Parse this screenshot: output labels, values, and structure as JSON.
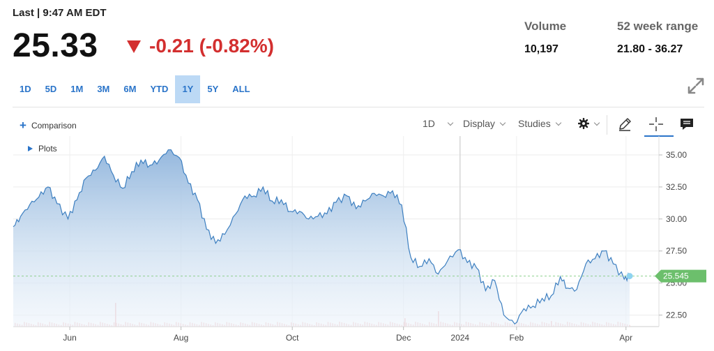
{
  "header": {
    "last_label": "Last | 9:47 AM EDT",
    "price": "25.33",
    "change": "-0.21 (-0.82%)",
    "volume_label": "Volume",
    "volume_value": "10,197",
    "range_label": "52 week range",
    "range_value": "21.80 - 36.27"
  },
  "colors": {
    "down": "#d32f2f",
    "accent": "#2a74c9",
    "line": "#3d7fc0",
    "last_value_tag": "#6cbf6c"
  },
  "timeframes": [
    "1D",
    "5D",
    "1M",
    "3M",
    "6M",
    "YTD",
    "1Y",
    "5Y",
    "ALL"
  ],
  "active_timeframe": "1Y",
  "toolbar": {
    "comparison": "Comparison",
    "interval": "1D",
    "display": "Display",
    "studies": "Studies",
    "plots": "Plots"
  },
  "icons": [
    "expand-icon",
    "gear-icon",
    "pencil-icon",
    "crosshair-icon",
    "comment-icon"
  ],
  "chart_data": {
    "type": "area",
    "x": [
      "2023-05-01",
      "2023-05-05",
      "2023-05-10",
      "2023-05-15",
      "2023-05-20",
      "2023-05-25",
      "2023-05-31",
      "2023-06-05",
      "2023-06-10",
      "2023-06-15",
      "2023-06-20",
      "2023-06-25",
      "2023-06-30",
      "2023-07-05",
      "2023-07-10",
      "2023-07-15",
      "2023-07-20",
      "2023-07-25",
      "2023-07-31",
      "2023-08-05",
      "2023-08-10",
      "2023-08-15",
      "2023-08-20",
      "2023-08-25",
      "2023-08-31",
      "2023-09-05",
      "2023-09-10",
      "2023-09-15",
      "2023-09-20",
      "2023-09-25",
      "2023-09-30",
      "2023-10-05",
      "2023-10-10",
      "2023-10-15",
      "2023-10-20",
      "2023-10-25",
      "2023-10-31",
      "2023-11-05",
      "2023-11-10",
      "2023-11-15",
      "2023-11-20",
      "2023-11-25",
      "2023-11-30",
      "2023-12-05",
      "2023-12-10",
      "2023-12-15",
      "2023-12-20",
      "2023-12-25",
      "2023-12-31",
      "2024-01-05",
      "2024-01-10",
      "2024-01-15",
      "2024-01-20",
      "2024-01-25",
      "2024-01-31",
      "2024-02-05",
      "2024-02-10",
      "2024-02-15",
      "2024-02-20",
      "2024-02-25",
      "2024-02-29",
      "2024-03-05",
      "2024-03-10",
      "2024-03-15",
      "2024-03-20",
      "2024-03-25",
      "2024-03-31",
      "2024-04-03"
    ],
    "values": [
      29.4,
      30.2,
      31.1,
      31.7,
      32.5,
      31.2,
      30.0,
      31.5,
      33.2,
      33.8,
      34.9,
      33.4,
      32.4,
      33.7,
      34.6,
      34.2,
      34.6,
      35.4,
      34.8,
      32.8,
      31.5,
      29.2,
      28.1,
      28.8,
      30.4,
      31.8,
      31.8,
      32.5,
      31.4,
      31.5,
      30.6,
      30.6,
      30.0,
      30.2,
      30.4,
      31.3,
      31.8,
      30.8,
      31.4,
      32.0,
      31.8,
      32.2,
      31.1,
      27.0,
      26.3,
      26.9,
      25.7,
      26.7,
      27.6,
      26.6,
      26.2,
      24.4,
      25.2,
      22.5,
      21.8,
      23.0,
      23.2,
      23.8,
      24.0,
      25.5,
      24.6,
      24.5,
      26.5,
      26.9,
      27.5,
      26.5,
      25.3,
      25.545
    ],
    "xticks": [
      "Jun",
      "Aug",
      "Oct",
      "Dec",
      "2024",
      "Feb",
      "Apr"
    ],
    "yticks": [
      "35.00",
      "32.50",
      "30.00",
      "27.50",
      "25.00",
      "22.50"
    ],
    "ylim": [
      21.6,
      36.2
    ],
    "last_value": "25.545",
    "title": "",
    "xlabel": "",
    "ylabel": "",
    "grid": true
  }
}
